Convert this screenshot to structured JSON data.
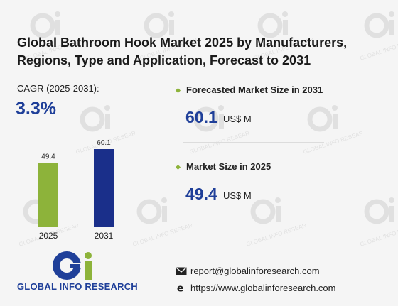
{
  "title": "Global Bathroom Hook Market 2025 by Manufacturers, Regions, Type and Application, Forecast to 2031",
  "cagr": {
    "label": "CAGR (2025-2031):",
    "value": "3.3%"
  },
  "forecast": {
    "label": "Forecasted Market Size in 2031",
    "value": "60.1",
    "unit": "US$ M"
  },
  "current": {
    "label": "Market Size in 2025",
    "value": "49.4",
    "unit": "US$ M"
  },
  "brand": {
    "name": "GLOBAL INFO RESEARCH",
    "watermark": "GLOBAL INFO RESEARCH"
  },
  "contact": {
    "email": "report@globalinforesearch.com",
    "website": "https://www.globalinforesearch.com"
  },
  "colors": {
    "accent_blue": "#1f3f99",
    "accent_green": "#8db33a",
    "bar_2025": "#8db33a",
    "bar_2031": "#1a2f8a"
  },
  "icons": [
    "email-icon",
    "globe-icon",
    "diamond-bullet-icon"
  ],
  "chart_data": {
    "type": "bar",
    "categories": [
      "2025",
      "2031"
    ],
    "values": [
      49.4,
      60.1
    ],
    "value_labels": [
      "49.4",
      "60.1"
    ],
    "colors": [
      "#8db33a",
      "#1a2f8a"
    ],
    "ylim": [
      0,
      60.1
    ],
    "grid": false,
    "legend": "none"
  }
}
